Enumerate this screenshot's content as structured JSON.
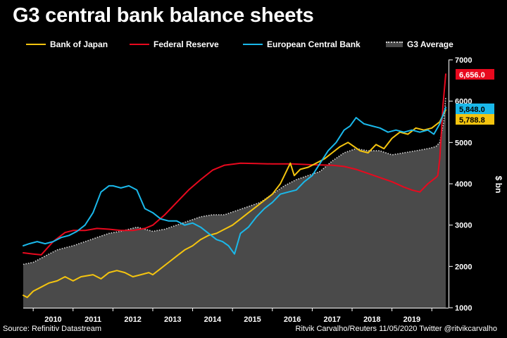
{
  "title": "G3 central bank balance sheets",
  "footer": {
    "source": "Source: Refinitiv Datastream",
    "credit": "Ritvik Carvalho/Reuters 11/05/2020 Twitter @ritvikcarvalho"
  },
  "colors": {
    "background": "#000000",
    "boj": "#f4c40f",
    "fed": "#e8091e",
    "ecb": "#1ab8ea",
    "g3_fill": "#4a4a4a",
    "g3_dots": "#d9d9d9"
  },
  "chart_data": {
    "type": "line",
    "title": "G3 central bank balance sheets",
    "ylabel": "$ bn",
    "ylim": [
      1000,
      7000
    ],
    "yticks": [
      "1000",
      "2000",
      "3000",
      "4000",
      "5000",
      "6000",
      "7000"
    ],
    "xlim": [
      2009.75,
      2020.42
    ],
    "xticks": [
      "2010",
      "2011",
      "2012",
      "2013",
      "2014",
      "2015",
      "2016",
      "2017",
      "2018",
      "2019"
    ],
    "legend_position": "top",
    "grid": false,
    "series": [
      {
        "name": "Bank of Japan",
        "key": "boj",
        "color": "#f4c40f",
        "x": [
          2009.75,
          2009.85,
          2010.0,
          2010.2,
          2010.4,
          2010.6,
          2010.8,
          2011.0,
          2011.2,
          2011.5,
          2011.7,
          2011.9,
          2012.1,
          2012.3,
          2012.5,
          2012.7,
          2012.9,
          2013.0,
          2013.2,
          2013.4,
          2013.6,
          2013.8,
          2014.0,
          2014.2,
          2014.4,
          2014.6,
          2014.8,
          2015.0,
          2015.2,
          2015.4,
          2015.6,
          2015.8,
          2016.0,
          2016.2,
          2016.35,
          2016.45,
          2016.55,
          2016.7,
          2016.9,
          2017.1,
          2017.3,
          2017.5,
          2017.7,
          2017.9,
          2018.2,
          2018.4,
          2018.6,
          2018.8,
          2019.0,
          2019.2,
          2019.4,
          2019.6,
          2019.8,
          2020.0,
          2020.2,
          2020.35
        ],
        "values": [
          1300,
          1250,
          1400,
          1500,
          1600,
          1650,
          1750,
          1650,
          1750,
          1800,
          1700,
          1850,
          1900,
          1850,
          1750,
          1800,
          1850,
          1800,
          1950,
          2100,
          2250,
          2400,
          2500,
          2650,
          2750,
          2800,
          2900,
          3000,
          3150,
          3300,
          3450,
          3600,
          3750,
          4000,
          4300,
          4500,
          4200,
          4350,
          4400,
          4500,
          4600,
          4750,
          4900,
          5000,
          4800,
          4750,
          4950,
          4850,
          5100,
          5250,
          5200,
          5350,
          5300,
          5350,
          5500,
          5788.8
        ]
      },
      {
        "name": "Federal Reserve",
        "key": "fed",
        "color": "#e8091e",
        "x": [
          2009.75,
          2010.0,
          2010.2,
          2010.5,
          2010.8,
          2011.0,
          2011.3,
          2011.6,
          2011.9,
          2012.2,
          2012.5,
          2012.8,
          2013.0,
          2013.3,
          2013.6,
          2013.9,
          2014.2,
          2014.5,
          2014.8,
          2015.2,
          2015.6,
          2016.0,
          2016.5,
          2017.0,
          2017.5,
          2017.8,
          2018.1,
          2018.4,
          2018.7,
          2019.0,
          2019.3,
          2019.5,
          2019.7,
          2019.9,
          2020.1,
          2020.15,
          2020.2,
          2020.28,
          2020.35
        ],
        "values": [
          2330,
          2300,
          2280,
          2600,
          2820,
          2870,
          2870,
          2920,
          2900,
          2870,
          2870,
          2920,
          3000,
          3250,
          3550,
          3850,
          4100,
          4330,
          4450,
          4500,
          4490,
          4480,
          4480,
          4460,
          4450,
          4420,
          4350,
          4250,
          4150,
          4050,
          3920,
          3850,
          3800,
          4000,
          4150,
          4200,
          4600,
          5900,
          6656.0
        ]
      },
      {
        "name": "European Central Bank",
        "key": "ecb",
        "color": "#1ab8ea",
        "x": [
          2009.75,
          2009.9,
          2010.1,
          2010.3,
          2010.5,
          2010.7,
          2010.9,
          2011.1,
          2011.3,
          2011.5,
          2011.7,
          2011.9,
          2012.0,
          2012.2,
          2012.4,
          2012.6,
          2012.8,
          2013.0,
          2013.2,
          2013.4,
          2013.6,
          2013.8,
          2014.0,
          2014.2,
          2014.4,
          2014.6,
          2014.75,
          2014.9,
          2015.05,
          2015.2,
          2015.4,
          2015.6,
          2015.8,
          2016.0,
          2016.2,
          2016.4,
          2016.6,
          2016.8,
          2017.0,
          2017.2,
          2017.4,
          2017.6,
          2017.8,
          2017.95,
          2018.1,
          2018.3,
          2018.5,
          2018.7,
          2018.9,
          2019.1,
          2019.3,
          2019.5,
          2019.7,
          2019.9,
          2020.05,
          2020.2,
          2020.35
        ],
        "values": [
          2500,
          2550,
          2600,
          2550,
          2600,
          2700,
          2750,
          2850,
          3000,
          3300,
          3800,
          3950,
          3950,
          3900,
          3950,
          3850,
          3400,
          3300,
          3150,
          3100,
          3100,
          3000,
          3050,
          2950,
          2800,
          2650,
          2600,
          2500,
          2300,
          2800,
          2950,
          3200,
          3400,
          3550,
          3750,
          3800,
          3850,
          4050,
          4200,
          4500,
          4800,
          5000,
          5300,
          5400,
          5600,
          5450,
          5400,
          5350,
          5250,
          5300,
          5250,
          5300,
          5250,
          5300,
          5200,
          5450,
          5848.0
        ]
      },
      {
        "name": "G3 Average",
        "key": "g3",
        "color": "#4a4a4a",
        "x": [
          2009.75,
          2010.0,
          2010.2,
          2010.4,
          2010.6,
          2010.8,
          2011.0,
          2011.3,
          2011.6,
          2011.9,
          2012.2,
          2012.4,
          2012.6,
          2012.8,
          2013.0,
          2013.3,
          2013.6,
          2013.9,
          2014.2,
          2014.5,
          2014.8,
          2015.1,
          2015.4,
          2015.7,
          2016.0,
          2016.3,
          2016.6,
          2016.9,
          2017.2,
          2017.5,
          2017.8,
          2018.1,
          2018.4,
          2018.7,
          2019.0,
          2019.3,
          2019.6,
          2019.9,
          2020.1,
          2020.2,
          2020.3,
          2020.35
        ],
        "values": [
          2050,
          2100,
          2200,
          2300,
          2400,
          2450,
          2500,
          2600,
          2700,
          2800,
          2850,
          2900,
          2950,
          2900,
          2850,
          2900,
          3000,
          3100,
          3200,
          3250,
          3250,
          3350,
          3450,
          3550,
          3750,
          3950,
          4100,
          4200,
          4300,
          4550,
          4750,
          4850,
          4800,
          4800,
          4700,
          4750,
          4800,
          4850,
          4900,
          5000,
          5500,
          6100
        ]
      }
    ],
    "end_labels": [
      {
        "key": "fed",
        "text": "6,656.0",
        "value": 6656.0
      },
      {
        "key": "ecb",
        "text": "5,848.0",
        "value": 5848.0
      },
      {
        "key": "boj",
        "text": "5,788.8",
        "value": 5788.8
      }
    ]
  }
}
